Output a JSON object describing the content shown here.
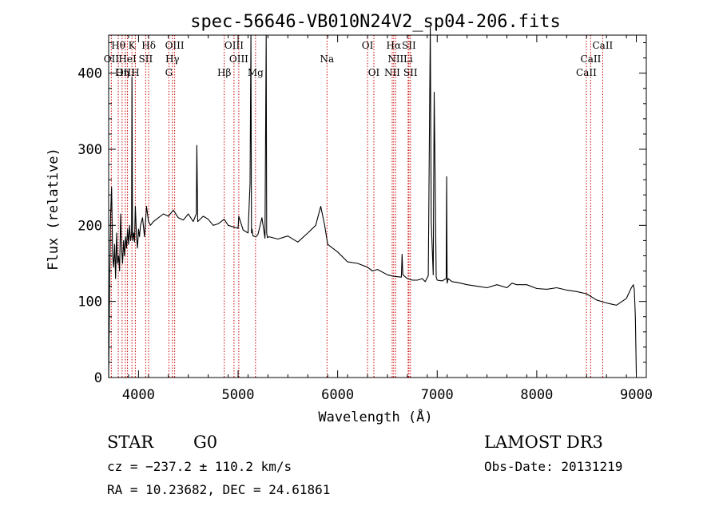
{
  "chart_data": {
    "type": "line",
    "title": "spec-56646-VB010N24V2_sp04-206.fits",
    "xlabel": "Wavelength (Å)",
    "ylabel": "Flux (relative)",
    "xlim": [
      3700,
      9100
    ],
    "ylim": [
      0,
      450
    ],
    "xticks": [
      4000,
      5000,
      6000,
      7000,
      8000,
      9000
    ],
    "yticks": [
      0,
      100,
      200,
      300,
      400
    ],
    "line_color": "#000000",
    "marker_color": "#cc0000",
    "series": [
      {
        "x": [
          3700,
          3710,
          3720,
          3730,
          3740,
          3750,
          3760,
          3770,
          3780,
          3790,
          3800,
          3810,
          3820,
          3830,
          3840,
          3850,
          3860,
          3870,
          3880,
          3890,
          3900,
          3910,
          3920,
          3930,
          3934,
          3940,
          3950,
          3960,
          3968,
          3980,
          3990,
          4000,
          4010,
          4020,
          4040,
          4060,
          4080,
          4100,
          4120,
          4150,
          4200,
          4250,
          4300,
          4350,
          4400,
          4450,
          4500,
          4550,
          4580,
          4586,
          4595,
          4650,
          4700,
          4750,
          4800,
          4860,
          4900,
          4950,
          5000,
          5007,
          5050,
          5100,
          5120,
          5129,
          5135,
          5140,
          5150,
          5180,
          5200,
          5240,
          5270,
          5282,
          5287,
          5295,
          5310,
          5400,
          5500,
          5600,
          5700,
          5780,
          5830,
          5870,
          5900,
          5950,
          6000,
          6100,
          6200,
          6300,
          6350,
          6400,
          6500,
          6560,
          6640,
          6647,
          6654,
          6700,
          6750,
          6800,
          6850,
          6880,
          6910,
          6930,
          6940,
          6960,
          6970,
          6990,
          7000,
          7050,
          7090,
          7095,
          7100,
          7110,
          7150,
          7200,
          7300,
          7400,
          7500,
          7600,
          7700,
          7750,
          7800,
          7900,
          8000,
          8100,
          8200,
          8300,
          8400,
          8500,
          8600,
          8700,
          8800,
          8900,
          8950,
          8970,
          8980,
          8990,
          9000
        ],
        "values": [
          0,
          120,
          215,
          250,
          160,
          145,
          175,
          130,
          190,
          150,
          160,
          140,
          215,
          170,
          150,
          180,
          160,
          185,
          170,
          195,
          175,
          200,
          180,
          190,
          395,
          180,
          190,
          178,
          225,
          185,
          170,
          195,
          185,
          200,
          210,
          185,
          225,
          205,
          200,
          205,
          210,
          215,
          212,
          220,
          210,
          207,
          215,
          205,
          215,
          305,
          205,
          212,
          208,
          200,
          202,
          208,
          200,
          198,
          196,
          212,
          194,
          190,
          255,
          450,
          190,
          195,
          186,
          185,
          188,
          210,
          183,
          450,
          190,
          184,
          185,
          182,
          186,
          178,
          190,
          200,
          225,
          200,
          175,
          170,
          165,
          152,
          150,
          145,
          140,
          142,
          135,
          133,
          132,
          162,
          135,
          130,
          128,
          128,
          130,
          126,
          134,
          460,
          205,
          135,
          375,
          132,
          128,
          127,
          130,
          264,
          124,
          130,
          126,
          125,
          122,
          120,
          118,
          122,
          118,
          124,
          122,
          122,
          117,
          116,
          118,
          115,
          113,
          110,
          102,
          98,
          95,
          104,
          118,
          122,
          115,
          80,
          5
        ]
      }
    ],
    "lines": [
      {
        "name": "Hθ",
        "x": 3797,
        "row": 1
      },
      {
        "name": "K",
        "x": 3934,
        "row": 1
      },
      {
        "name": "Hδ",
        "x": 4102,
        "row": 1
      },
      {
        "name": "OIII",
        "x": 4363,
        "row": 1
      },
      {
        "name": "OIII",
        "x": 4959,
        "row": 1
      },
      {
        "name": "OI",
        "x": 6300,
        "row": 1
      },
      {
        "name": "Hα",
        "x": 6563,
        "row": 1
      },
      {
        "name": "SII",
        "x": 6716,
        "row": 1
      },
      {
        "name": "CaII",
        "x": 8662,
        "row": 1
      },
      {
        "name": "OII",
        "x": 3727,
        "row": 2
      },
      {
        "name": "HeI",
        "x": 3889,
        "row": 2
      },
      {
        "name": "SII",
        "x": 4072,
        "row": 2
      },
      {
        "name": "Hγ",
        "x": 4340,
        "row": 2
      },
      {
        "name": "OIII",
        "x": 5007,
        "row": 2
      },
      {
        "name": "Na",
        "x": 5893,
        "row": 2
      },
      {
        "name": "NII",
        "x": 6583,
        "row": 2
      },
      {
        "name": "Li",
        "x": 6708,
        "row": 2
      },
      {
        "name": "CaII",
        "x": 8542,
        "row": 2
      },
      {
        "name": "OIII",
        "x": 3868,
        "row": 3
      },
      {
        "name": "Hη",
        "x": 3835,
        "row": 3
      },
      {
        "name": "H",
        "x": 3968,
        "row": 3
      },
      {
        "name": "G",
        "x": 4305,
        "row": 3
      },
      {
        "name": "Hβ",
        "x": 4861,
        "row": 3
      },
      {
        "name": "Mg",
        "x": 5175,
        "row": 3
      },
      {
        "name": "OI",
        "x": 6364,
        "row": 3
      },
      {
        "name": "NII",
        "x": 6548,
        "row": 3
      },
      {
        "name": "SII",
        "x": 6731,
        "row": 3
      },
      {
        "name": "CaII",
        "x": 8498,
        "row": 3
      }
    ]
  },
  "info": {
    "class": "STAR",
    "subclass": "G0",
    "survey": "LAMOST DR3",
    "cz": "cz = −237.2 ± 110.2 km/s",
    "obs_date": "Obs-Date: 20131219",
    "radec": "RA =  10.23682, DEC =  24.61861"
  }
}
